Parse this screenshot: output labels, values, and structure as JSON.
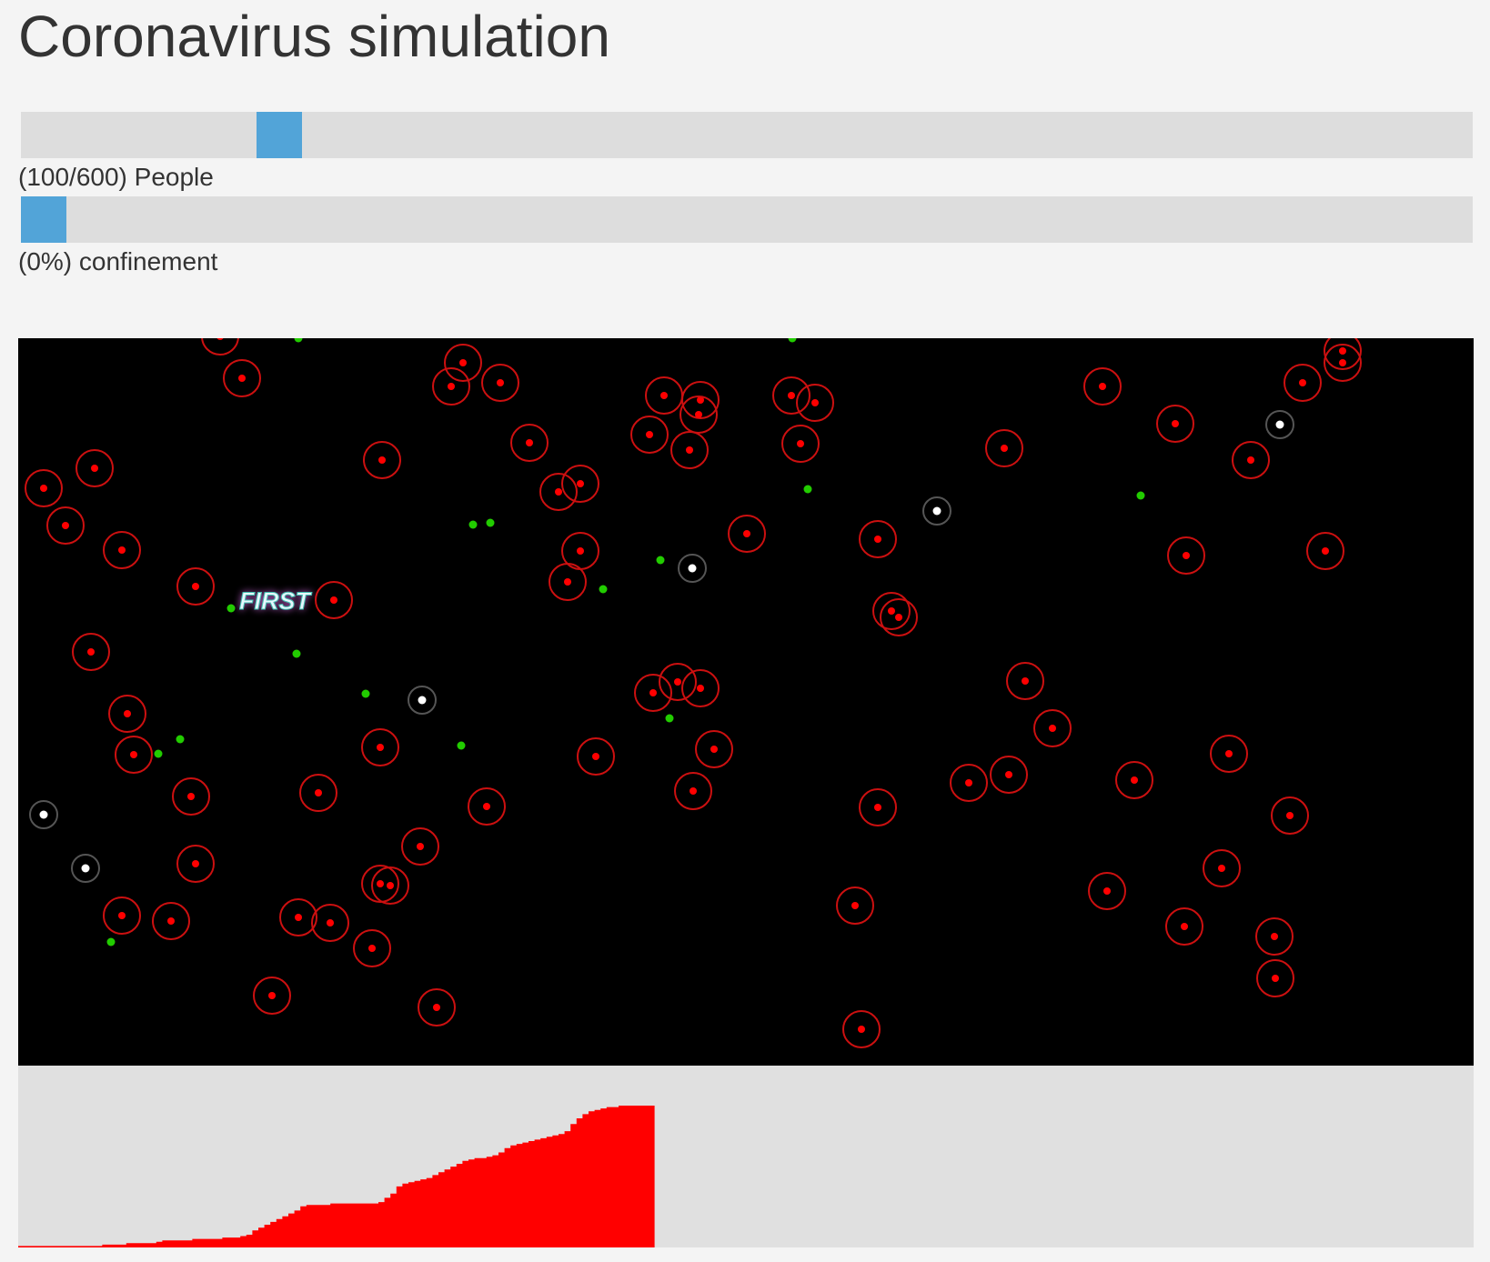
{
  "title": "Coronavirus simulation",
  "controls": {
    "people": {
      "label": "(100/600) People",
      "value": 100,
      "max": 600
    },
    "confinement": {
      "label": "(0%) confinement",
      "value_percent": 0
    }
  },
  "simulation": {
    "first_label": "FIRST",
    "colors": {
      "background": "#000000",
      "infected": "#ff0000",
      "recovered": "#ffffff",
      "healthy": "#22cc00"
    }
  },
  "chart_data": {
    "type": "area",
    "title": "",
    "xlabel": "",
    "ylabel": "",
    "series": [
      {
        "color": "#ff0000",
        "values": [
          1,
          1,
          1,
          1,
          1,
          1,
          1,
          1,
          1,
          1,
          1,
          1,
          1,
          1,
          2,
          2,
          2,
          2,
          3,
          3,
          3,
          3,
          3,
          4,
          5,
          5,
          5,
          5,
          5,
          6,
          6,
          6,
          6,
          6,
          7,
          7,
          7,
          8,
          9,
          12,
          14,
          16,
          18,
          20,
          22,
          24,
          26,
          29,
          30,
          30,
          30,
          30,
          31,
          31,
          31,
          31,
          31,
          31,
          31,
          31,
          32,
          35,
          38,
          43,
          45,
          46,
          47,
          48,
          49,
          51,
          53,
          55,
          57,
          59,
          61,
          62,
          63,
          63,
          64,
          65,
          67,
          70,
          72,
          73,
          74,
          75,
          76,
          77,
          78,
          79,
          80,
          82,
          87,
          91,
          94,
          96,
          97,
          98,
          99,
          99,
          100,
          100,
          100,
          100,
          100,
          100
        ]
      }
    ]
  }
}
